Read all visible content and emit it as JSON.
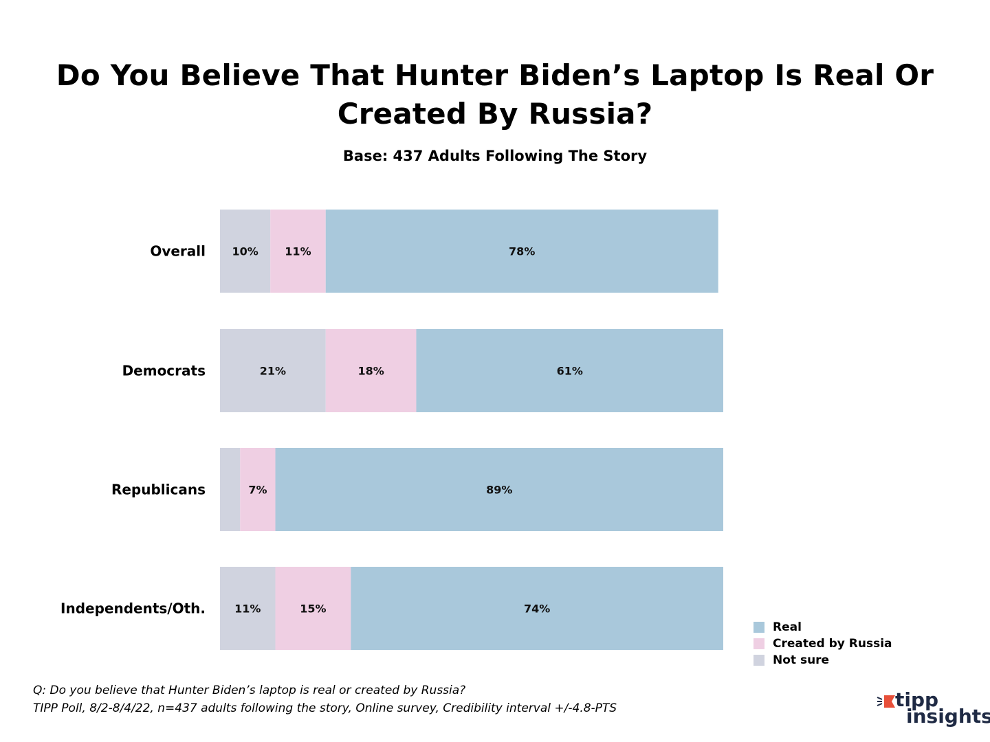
{
  "chart_data": {
    "type": "bar",
    "orientation": "horizontal",
    "stacked": true,
    "title": "Do You Believe That Hunter Biden’s Laptop Is Real Or Created By Russia?",
    "subtitle": "Base: 437 Adults Following The Story",
    "categories": [
      "Overall",
      "Democrats",
      "Republicans",
      "Independents/Oth."
    ],
    "series": [
      {
        "name": "Not sure",
        "values": [
          10,
          21,
          4,
          11
        ],
        "color": "#d0d3df",
        "labels": [
          "10%",
          "21%",
          "",
          "11%"
        ]
      },
      {
        "name": "Created by Russia",
        "values": [
          11,
          18,
          7,
          15
        ],
        "color": "#efcfe3",
        "labels": [
          "11%",
          "18%",
          "7%",
          "15%"
        ]
      },
      {
        "name": "Real",
        "values": [
          78,
          61,
          89,
          74
        ],
        "color": "#a9c8db",
        "labels": [
          "78%",
          "61%",
          "89%",
          "74%"
        ]
      }
    ],
    "legend": {
      "position": "bottom-right",
      "items": [
        {
          "name": "Real",
          "color": "#a9c8db"
        },
        {
          "name": "Created by Russia",
          "color": "#efcfe3"
        },
        {
          "name": "Not sure",
          "color": "#d0d3df"
        }
      ]
    },
    "xlim": [
      0,
      100
    ],
    "grid": false
  },
  "footnote": {
    "line1": "Q: Do you believe that Hunter Biden’s laptop is real or created by Russia?",
    "line2": "TIPP Poll, 8/2-8/4/22, n=437 adults following the story, Online survey, Credibility interval +/-4.8-PTS"
  },
  "logo": {
    "word1": "tipp",
    "word2": "insights",
    "icon": "tipp-flag-icon",
    "accent": "#e8503a"
  }
}
